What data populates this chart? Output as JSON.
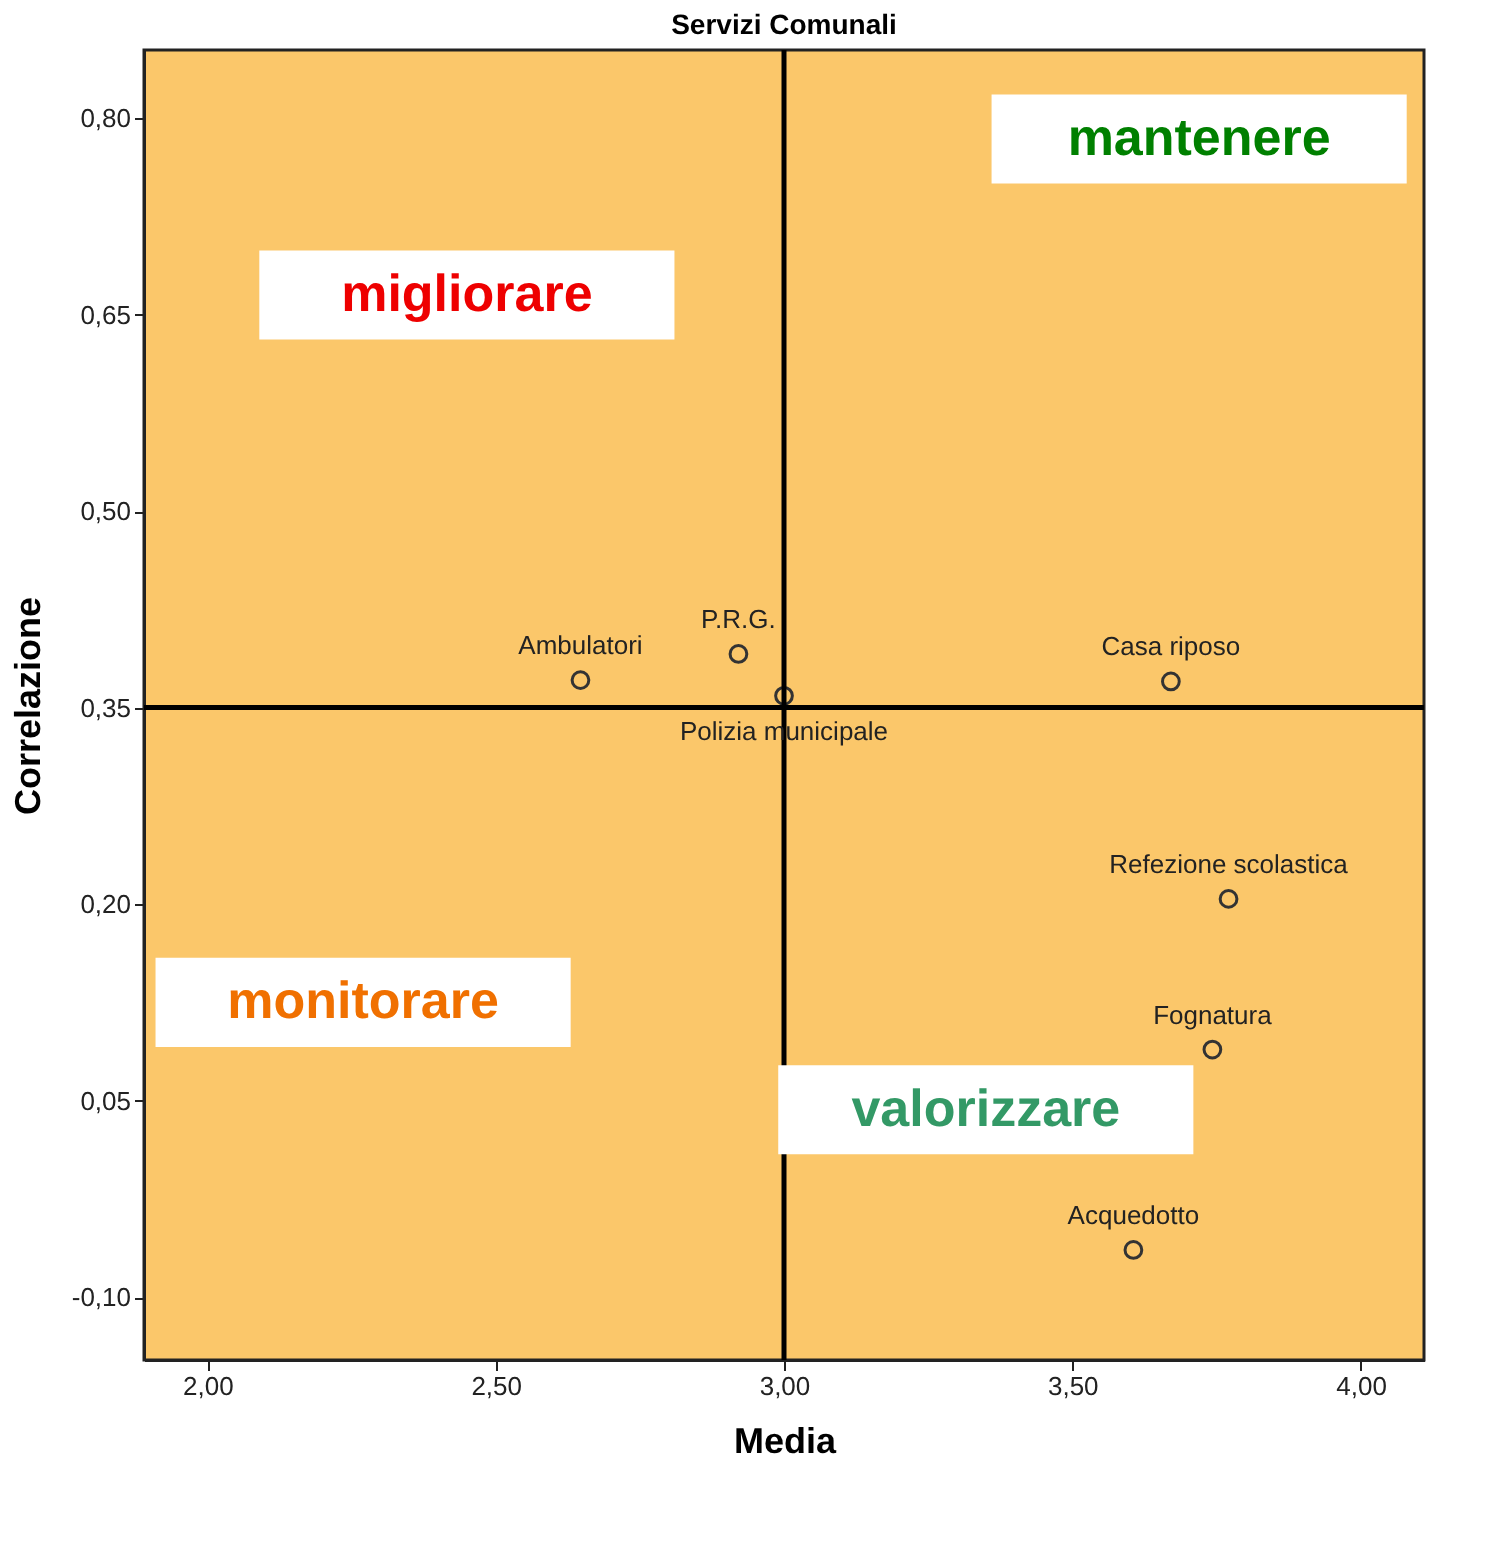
{
  "chart_data": {
    "type": "scatter",
    "title": "Servizi Comunali",
    "xlabel": "Media",
    "ylabel": "Correlazione",
    "x": [
      2.647,
      2.921,
      3.0,
      3.671,
      3.771,
      3.743,
      3.606
    ],
    "series": [
      {
        "color": "#333333",
        "values": [
          0.371,
          0.391,
          0.359,
          0.37,
          0.204,
          0.089,
          -0.064
        ]
      }
    ],
    "marker": "circle",
    "grid": false,
    "xlim": [
      1.89,
      4.11
    ],
    "ylim": [
      -0.148,
      0.852
    ],
    "xticks": [
      {
        "value": 2.0,
        "label": "2,00"
      },
      {
        "value": 2.5,
        "label": "2,50"
      },
      {
        "value": 3.0,
        "label": "3,00"
      },
      {
        "value": 3.5,
        "label": "3,50"
      },
      {
        "value": 4.0,
        "label": "4,00"
      }
    ],
    "yticks": [
      {
        "value": -0.1,
        "label": "-0,10"
      },
      {
        "value": 0.05,
        "label": "0,05"
      },
      {
        "value": 0.2,
        "label": "0,20"
      },
      {
        "value": 0.35,
        "label": "0,35"
      },
      {
        "value": 0.5,
        "label": "0,50"
      },
      {
        "value": 0.65,
        "label": "0,65"
      },
      {
        "value": 0.8,
        "label": "0,80"
      }
    ],
    "ref_lines": [
      {
        "axis": "x",
        "value": 3.0,
        "color": "#000000"
      },
      {
        "axis": "y",
        "value": 0.35,
        "color": "#000000"
      }
    ],
    "annotations": [
      {
        "text": "Ambulatori",
        "x": 2.647,
        "y": 0.371
      },
      {
        "text": "P.R.G.",
        "x": 2.921,
        "y": 0.391
      },
      {
        "text": "Polizia municipale",
        "x": 3.0,
        "y": 0.359
      },
      {
        "text": "Casa riposo",
        "x": 3.671,
        "y": 0.37
      },
      {
        "text": "Refezione scolastica",
        "x": 3.771,
        "y": 0.204
      },
      {
        "text": "Fognatura",
        "x": 3.743,
        "y": 0.089
      },
      {
        "text": "Acquedotto",
        "x": 3.606,
        "y": -0.064
      },
      "mantenere",
      "migliorare",
      "monitorare",
      "valorizzare"
    ]
  }
}
